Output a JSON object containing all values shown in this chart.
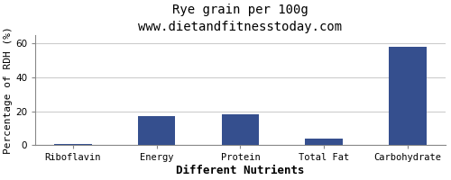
{
  "categories": [
    "Riboflavin",
    "Energy",
    "Protein",
    "Total Fat",
    "Carbohydrate"
  ],
  "values": [
    0.3,
    17,
    18,
    4,
    58
  ],
  "bar_color": "#354f8e",
  "title": "Rye grain per 100g",
  "subtitle": "www.dietandfitnesstoday.com",
  "ylabel": "Percentage of RDH (%)",
  "xlabel": "Different Nutrients",
  "ylim": [
    0,
    65
  ],
  "yticks": [
    0,
    20,
    40,
    60
  ],
  "background_color": "#ffffff",
  "plot_bg_color": "#ffffff",
  "grid_color": "#cccccc",
  "title_fontsize": 10,
  "subtitle_fontsize": 8.5,
  "axis_label_fontsize": 8,
  "tick_fontsize": 7.5,
  "xlabel_fontsize": 9,
  "xlabel_bold": true
}
